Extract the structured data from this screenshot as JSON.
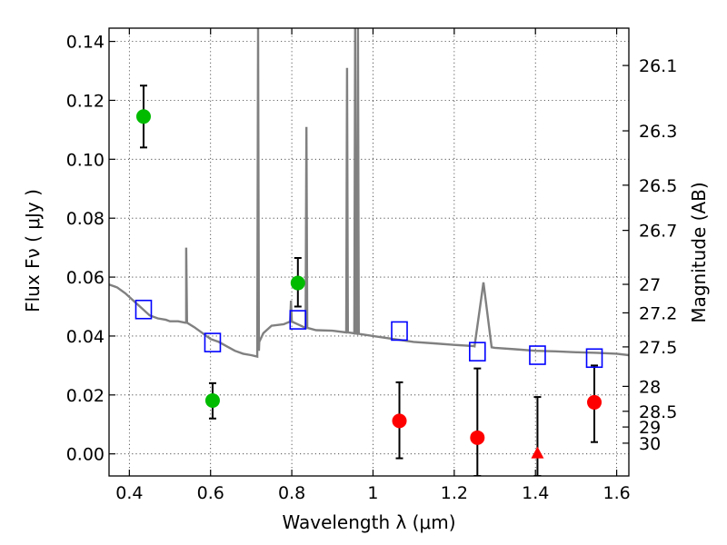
{
  "chart_data": {
    "type": "scatter",
    "xlabel": "Wavelength  λ (μm)",
    "ylabel": "Flux  Fν  ( μJy )",
    "ylabel_right": "Magnitude (AB)",
    "xlim": [
      0.35,
      1.63
    ],
    "ylim": [
      -0.0075,
      0.1445
    ],
    "x_ticks": [
      0.4,
      0.6,
      0.8,
      1,
      1.2,
      1.4,
      1.6
    ],
    "x_tick_labels": [
      "0.4",
      "0.6",
      "0.8",
      "1",
      "1.2",
      "1.4",
      "1.6"
    ],
    "y_ticks": [
      0.0,
      0.02,
      0.04,
      0.06,
      0.08,
      0.1,
      0.12,
      0.14
    ],
    "y_tick_labels": [
      "0.00",
      "0.02",
      "0.04",
      "0.06",
      "0.08",
      "0.10",
      "0.12",
      "0.14"
    ],
    "right_axis_magnitudes": [
      26.1,
      26.3,
      26.5,
      26.7,
      27,
      27.2,
      27.5,
      28,
      28.5,
      29,
      30
    ],
    "right_axis_labels": [
      "26.1",
      "26.3",
      "26.5",
      "26.7",
      "27",
      "27.2",
      "27.5",
      "28",
      "28.5",
      "29",
      "30"
    ],
    "grid": true,
    "colors": {
      "green": "#00bb00",
      "red": "#ff0000",
      "model_square": "#0000ff",
      "template": "#808080"
    },
    "series": [
      {
        "marker": "circle",
        "color": "#00bb00",
        "x": [
          0.435,
          0.605,
          0.815
        ],
        "y": [
          0.1145,
          0.0181,
          0.058
        ],
        "yerr_low": [
          0.104,
          0.012,
          0.05
        ],
        "yerr_high": [
          0.125,
          0.024,
          0.0665
        ]
      },
      {
        "marker": "circle",
        "color": "#ff0000",
        "x": [
          1.065,
          1.257,
          1.545
        ],
        "y": [
          0.0112,
          0.0055,
          0.0175
        ],
        "yerr_low": [
          -0.0015,
          -0.0075,
          0.004
        ],
        "yerr_high": [
          0.0243,
          0.029,
          0.03
        ]
      },
      {
        "marker": "triangle",
        "color": "#ff0000",
        "x": [
          1.405
        ],
        "y": [
          0.0
        ],
        "yerr_low": [
          -0.0075
        ],
        "yerr_high": [
          0.0193
        ]
      },
      {
        "marker": "square",
        "color": "#0000ff",
        "x": [
          0.435,
          0.605,
          0.815,
          1.065,
          1.257,
          1.405,
          1.545
        ],
        "y": [
          0.049,
          0.0378,
          0.0455,
          0.0417,
          0.0347,
          0.0335,
          0.0325
        ]
      }
    ],
    "template_spectrum": {
      "x": [
        0.35,
        0.37,
        0.39,
        0.41,
        0.43,
        0.45,
        0.47,
        0.49,
        0.5,
        0.52,
        0.54,
        0.56,
        0.58,
        0.6,
        0.62,
        0.64,
        0.66,
        0.68,
        0.7,
        0.715,
        0.72,
        0.73,
        0.75,
        0.78,
        0.8,
        0.83,
        0.86,
        0.9,
        0.95,
        1.0,
        1.05,
        1.1,
        1.15,
        1.2,
        1.25,
        1.3,
        1.35,
        1.4,
        1.45,
        1.5,
        1.55,
        1.6,
        1.63
      ],
      "y": [
        0.0575,
        0.0565,
        0.0545,
        0.052,
        0.0495,
        0.047,
        0.046,
        0.0455,
        0.045,
        0.045,
        0.0445,
        0.043,
        0.041,
        0.039,
        0.038,
        0.0365,
        0.035,
        0.034,
        0.0335,
        0.033,
        0.038,
        0.041,
        0.0435,
        0.044,
        0.045,
        0.043,
        0.042,
        0.0418,
        0.041,
        0.04,
        0.039,
        0.038,
        0.0375,
        0.037,
        0.0365,
        0.036,
        0.0355,
        0.035,
        0.0348,
        0.0345,
        0.0343,
        0.034,
        0.0335
      ]
    },
    "template_lines": [
      {
        "x": 0.54,
        "peak": 0.07
      },
      {
        "x": 0.717,
        "peak": 0.1445
      },
      {
        "x": 0.798,
        "peak": 0.052
      },
      {
        "x": 0.836,
        "peak": 0.111
      },
      {
        "x": 0.936,
        "peak": 0.131
      },
      {
        "x": 0.956,
        "peak": 0.1445
      },
      {
        "x": 0.963,
        "peak": 0.1445
      }
    ],
    "template_bump": {
      "x": [
        1.248,
        1.272,
        1.292
      ],
      "y": [
        0.0366,
        0.0582,
        0.0362
      ]
    }
  }
}
